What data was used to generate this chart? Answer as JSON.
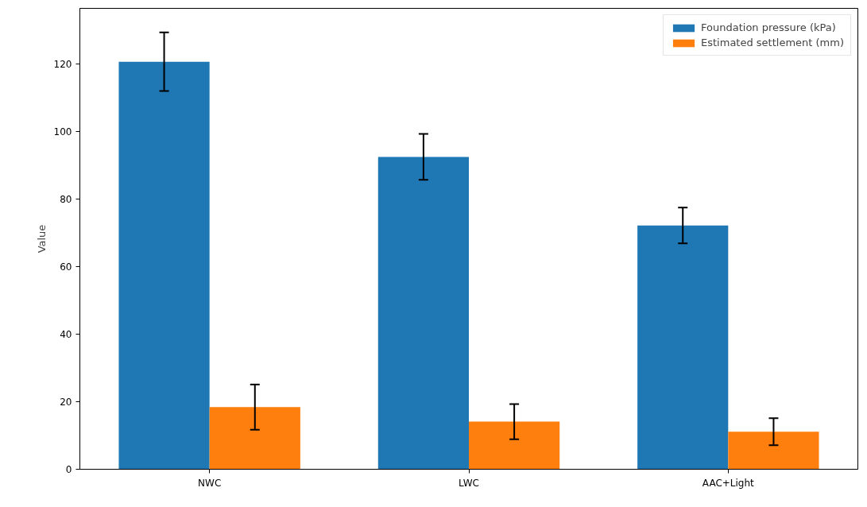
{
  "chart_data": {
    "type": "bar",
    "ylabel": "Value",
    "categories": [
      "NWC",
      "LWC",
      "AAC+Light"
    ],
    "series": [
      {
        "name": "Foundation pressure (kPa)",
        "color": "#1f77b4",
        "values": [
          120.7,
          92.5,
          72.2
        ],
        "errors": [
          8.7,
          6.8,
          5.3
        ]
      },
      {
        "name": "Estimated settlement (mm)",
        "color": "#ff7f0e",
        "values": [
          18.4,
          14.1,
          11.1
        ],
        "errors": [
          6.7,
          5.2,
          4.0
        ]
      }
    ],
    "ylim": [
      0,
      136.5
    ],
    "yticks": [
      0,
      20,
      40,
      60,
      80,
      100,
      120
    ],
    "grid": false,
    "legend": "top right"
  }
}
